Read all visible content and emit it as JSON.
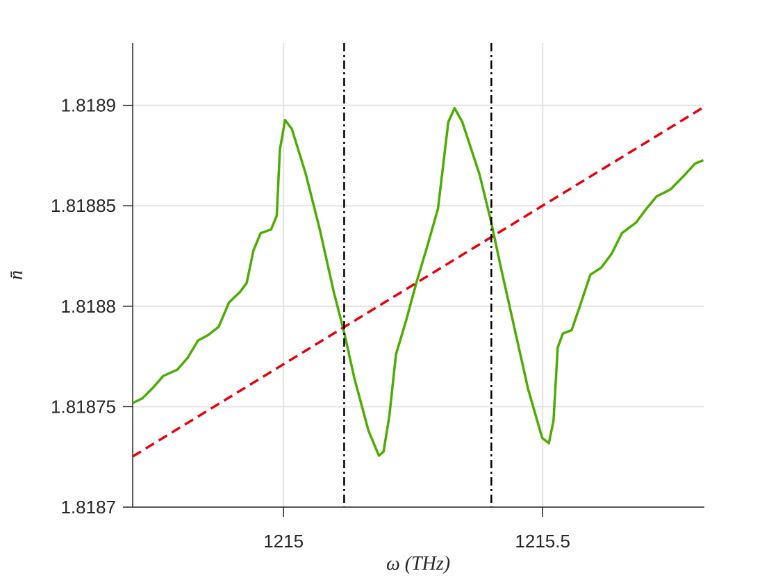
{
  "chart_data": {
    "type": "line",
    "xlabel": "ω (THz)",
    "ylabel": "n̄",
    "xlim": [
      1214.709,
      1215.812
    ],
    "ylim": [
      1.8187,
      1.818931
    ],
    "xticks": [
      1215,
      1215.5
    ],
    "yticks": [
      1.8187,
      1.81875,
      1.8188,
      1.81885,
      1.8189
    ],
    "grid": true,
    "vlines": {
      "x": [
        1215.117,
        1215.401
      ],
      "color": "#000000",
      "style": "dashdot"
    },
    "series": [
      {
        "color": "#4dac00",
        "style": "solid",
        "x": [
          1214.709,
          1214.728,
          1214.748,
          1214.768,
          1214.795,
          1214.815,
          1214.835,
          1214.855,
          1214.875,
          1214.895,
          1214.916,
          1214.929,
          1214.942,
          1214.956,
          1214.976,
          1214.987,
          1214.993,
          1215.003,
          1215.016,
          1215.043,
          1215.07,
          1215.097,
          1215.117,
          1215.137,
          1215.164,
          1215.184,
          1215.193,
          1215.204,
          1215.217,
          1215.237,
          1215.257,
          1215.277,
          1215.298,
          1215.318,
          1215.33,
          1215.345,
          1215.378,
          1215.401,
          1215.418,
          1215.445,
          1215.472,
          1215.499,
          1215.512,
          1215.521,
          1215.529,
          1215.539,
          1215.556,
          1215.572,
          1215.592,
          1215.613,
          1215.633,
          1215.653,
          1215.68,
          1215.7,
          1215.72,
          1215.747,
          1215.773,
          1215.794,
          1215.81
        ],
        "values": [
          1.8187518,
          1.8187542,
          1.8187594,
          1.8187653,
          1.8187684,
          1.8187743,
          1.8187829,
          1.8187857,
          1.8187898,
          1.8188019,
          1.8188071,
          1.8188116,
          1.8188278,
          1.8188364,
          1.8188382,
          1.8188451,
          1.8188779,
          1.8188927,
          1.8188883,
          1.8188658,
          1.8188382,
          1.8188071,
          1.818787,
          1.8187639,
          1.818738,
          1.8187256,
          1.8187276,
          1.8187449,
          1.818776,
          1.8187933,
          1.8188123,
          1.8188295,
          1.8188485,
          1.8188917,
          1.8188986,
          1.8188917,
          1.8188658,
          1.8188416,
          1.8188209,
          1.8187898,
          1.8187587,
          1.8187345,
          1.8187318,
          1.8187432,
          1.8187794,
          1.8187864,
          1.8187881,
          1.8188002,
          1.8188157,
          1.8188192,
          1.8188261,
          1.8188364,
          1.8188416,
          1.8188485,
          1.8188547,
          1.8188582,
          1.8188651,
          1.818871,
          1.8188727
        ]
      },
      {
        "color": "#e8000b",
        "style": "dashed",
        "x": [
          1214.709,
          1215.812
        ],
        "values": [
          1.8187252,
          1.8188993
        ]
      }
    ]
  }
}
